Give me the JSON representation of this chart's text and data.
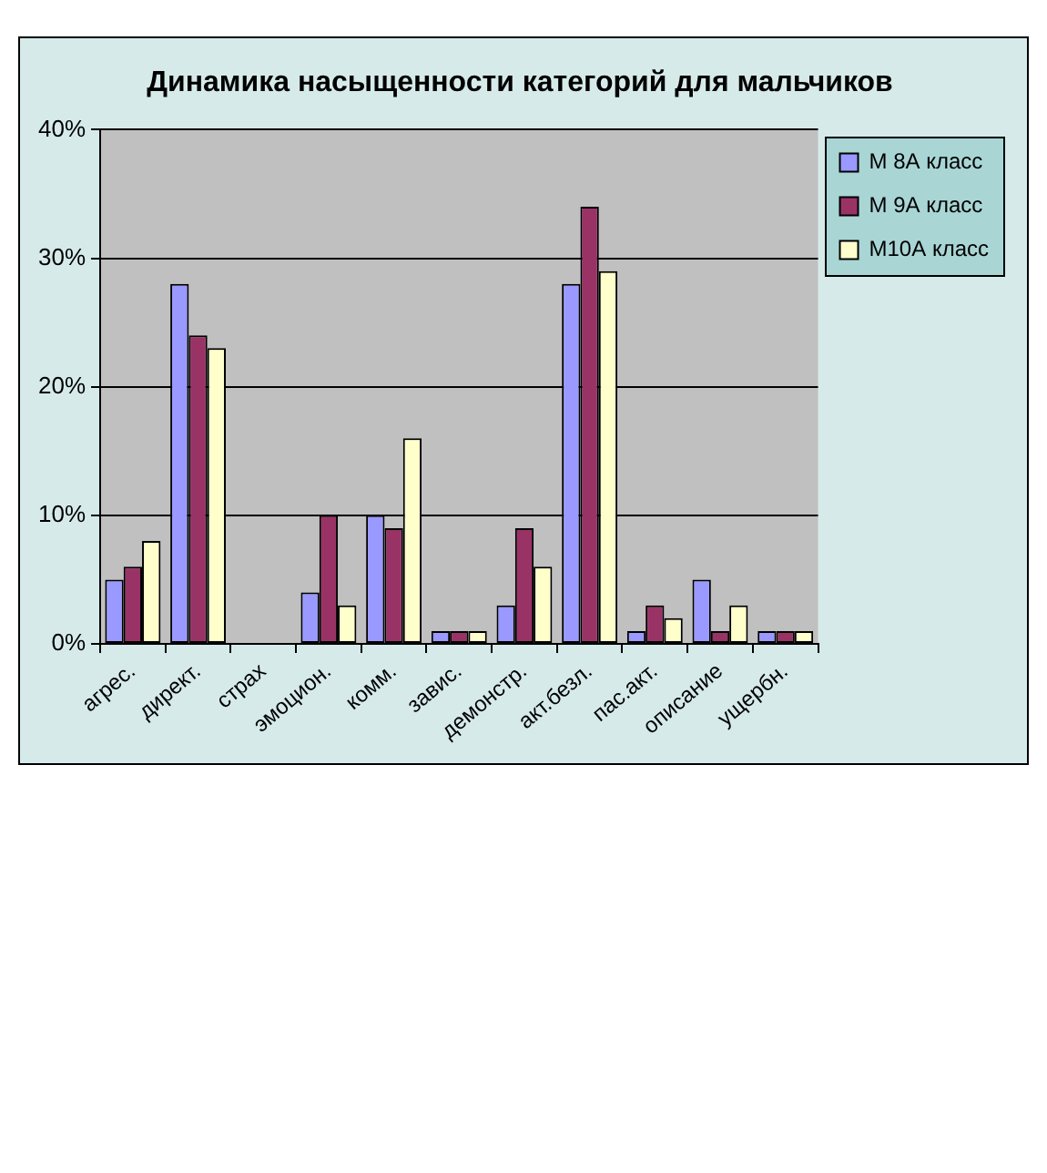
{
  "chart_data": {
    "type": "bar",
    "title": "Динамика насыщенности категорий для мальчиков",
    "categories": [
      "агрес.",
      "директ.",
      "страх",
      "эмоцион.",
      "комм.",
      "завис.",
      "демонстр.",
      "акт.безл.",
      "пас.акт.",
      "описание",
      "ущербн."
    ],
    "series": [
      {
        "name": "М 8А класс",
        "color": "#9999ff",
        "values": [
          5,
          28,
          null,
          4,
          10,
          1,
          3,
          28,
          1,
          5,
          1
        ]
      },
      {
        "name": "М 9А класс",
        "color": "#993366",
        "values": [
          6,
          24,
          null,
          10,
          9,
          1,
          9,
          34,
          3,
          1,
          1
        ]
      },
      {
        "name": "М10А класс",
        "color": "#ffffcc",
        "values": [
          8,
          23,
          null,
          3,
          16,
          1,
          6,
          29,
          2,
          3,
          1
        ]
      }
    ],
    "ylim": [
      0,
      40
    ],
    "yticks": [
      {
        "value": 0,
        "label": "0%"
      },
      {
        "value": 10,
        "label": "10%"
      },
      {
        "value": 20,
        "label": "20%"
      },
      {
        "value": 30,
        "label": "30%"
      },
      {
        "value": 40,
        "label": "40%"
      }
    ],
    "grid": "y",
    "legend": "top right"
  }
}
